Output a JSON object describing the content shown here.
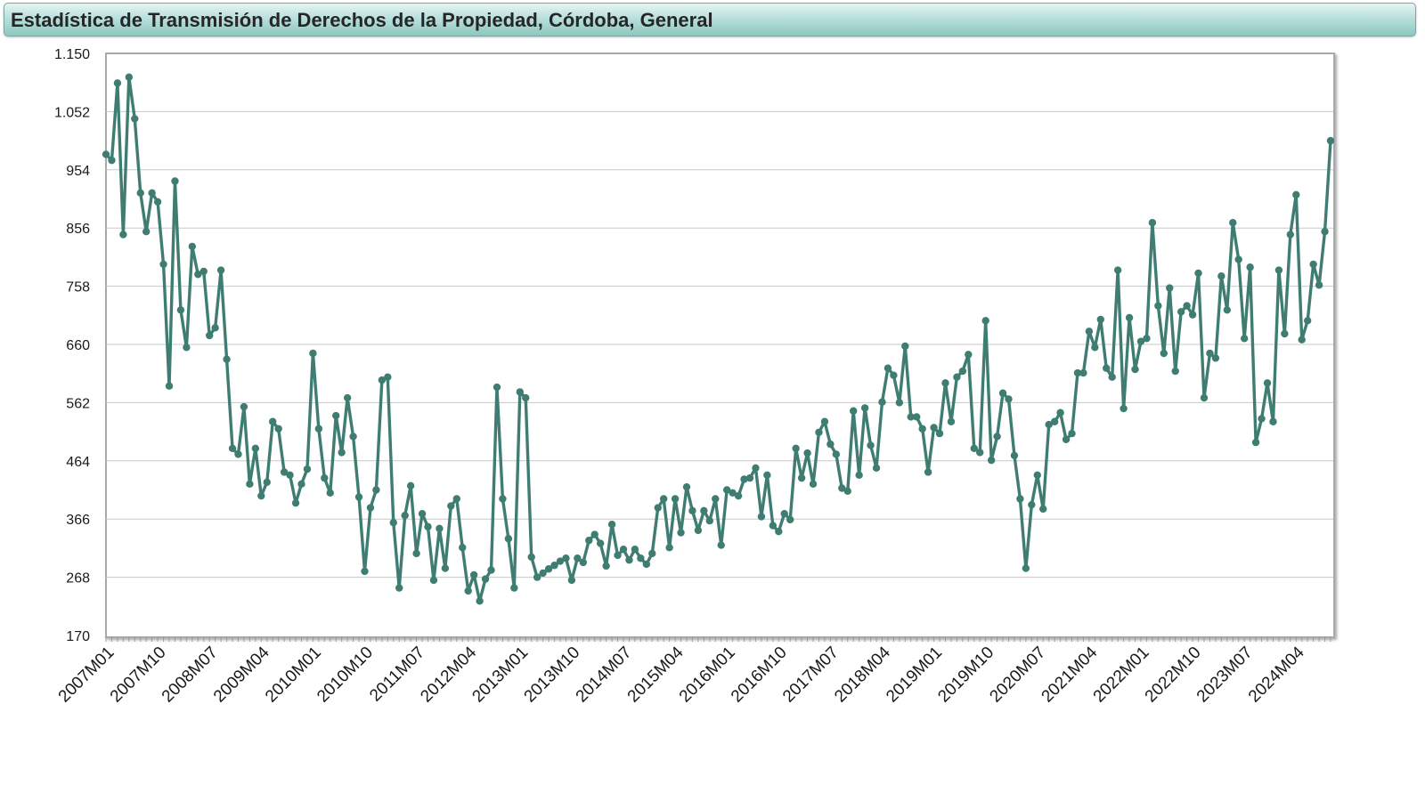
{
  "window": {
    "title": "Estadística de Transmisión de Derechos de la Propiedad, Córdoba, General"
  },
  "colors": {
    "series": "#3f7d72",
    "grid": "#c8c8c8",
    "title_bar": "#b9e0dc"
  },
  "chart_data": {
    "type": "line",
    "title": "Estadística de Transmisión de Derechos de la Propiedad, Córdoba, General",
    "xlabel": "",
    "ylabel": "",
    "ylim": [
      170,
      1150
    ],
    "yticks": [
      170,
      268,
      366,
      464,
      562,
      660,
      758,
      856,
      954,
      1052,
      1150
    ],
    "ytick_labels": [
      "170",
      "268",
      "366",
      "464",
      "562",
      "660",
      "758",
      "856",
      "954",
      "1.052",
      "1.150"
    ],
    "grid": true,
    "legend": "none",
    "start_period": "2007M01",
    "xtick_labels": [
      "2007M01",
      "2007M10",
      "2008M07",
      "2009M04",
      "2010M01",
      "2010M10",
      "2011M07",
      "2012M04",
      "2013M01",
      "2013M10",
      "2014M07",
      "2015M04",
      "2016M01",
      "2016M10",
      "2017M07",
      "2018M04",
      "2019M01",
      "2019M10",
      "2020M07",
      "2021M04",
      "2022M01",
      "2022M10",
      "2023M07",
      "2024M04"
    ],
    "series": [
      {
        "name": "General",
        "values": [
          980,
          970,
          1100,
          845,
          1110,
          1040,
          915,
          850,
          915,
          900,
          795,
          590,
          935,
          718,
          655,
          825,
          778,
          783,
          675,
          688,
          785,
          635,
          485,
          475,
          555,
          425,
          485,
          405,
          428,
          530,
          518,
          445,
          440,
          393,
          425,
          450,
          645,
          518,
          435,
          410,
          540,
          478,
          570,
          505,
          403,
          278,
          385,
          415,
          600,
          605,
          360,
          250,
          372,
          422,
          308,
          375,
          353,
          263,
          350,
          283,
          388,
          400,
          318,
          245,
          272,
          228,
          265,
          280,
          588,
          400,
          333,
          250,
          580,
          570,
          302,
          268,
          275,
          282,
          288,
          295,
          300,
          263,
          300,
          293,
          330,
          340,
          325,
          287,
          357,
          305,
          315,
          297,
          315,
          300,
          290,
          308,
          385,
          400,
          318,
          400,
          343,
          420,
          380,
          347,
          380,
          363,
          400,
          322,
          415,
          410,
          405,
          433,
          435,
          452,
          370,
          440,
          355,
          345,
          375,
          365,
          485,
          435,
          477,
          425,
          512,
          530,
          492,
          475,
          418,
          413,
          548,
          440,
          553,
          490,
          452,
          563,
          620,
          608,
          562,
          657,
          538,
          538,
          518,
          445,
          520,
          510,
          595,
          530,
          605,
          615,
          643,
          485,
          478,
          700,
          465,
          505,
          578,
          568,
          473,
          400,
          283,
          390,
          440,
          383,
          525,
          530,
          545,
          500,
          510,
          612,
          612,
          682,
          655,
          702,
          620,
          605,
          785,
          552,
          705,
          618,
          665,
          670,
          865,
          725,
          645,
          755,
          615,
          715,
          725,
          710,
          780,
          570,
          645,
          637,
          775,
          718,
          865,
          803,
          670,
          790,
          495,
          535,
          595,
          530,
          785,
          678,
          845,
          912,
          668,
          700,
          795,
          760,
          850,
          1003
        ]
      }
    ]
  }
}
